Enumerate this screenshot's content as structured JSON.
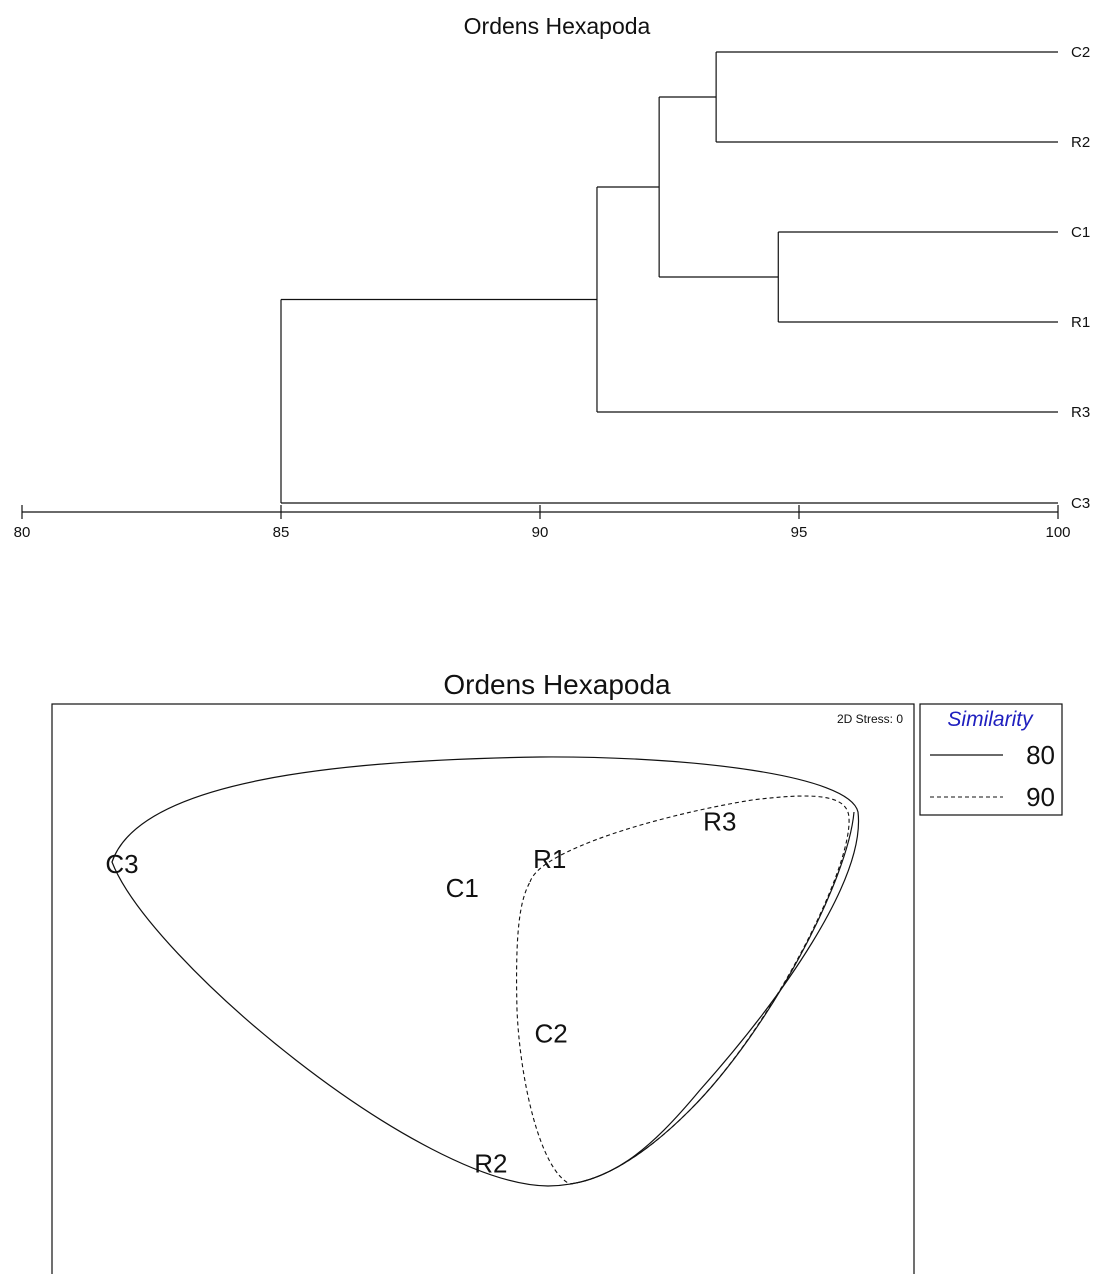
{
  "chart_data": [
    {
      "type": "dendrogram",
      "title": "Ordens Hexapoda",
      "axis": {
        "min": 80,
        "max": 100,
        "ticks": [
          "80",
          "85",
          "90",
          "95",
          "100"
        ]
      },
      "leaves": [
        "C2",
        "R2",
        "C1",
        "R1",
        "R3",
        "C3"
      ],
      "merges": [
        {
          "id": "m1",
          "a": "C2",
          "b": "R2",
          "similarity": 93.4
        },
        {
          "id": "m2",
          "a": "C1",
          "b": "R1",
          "similarity": 94.6
        },
        {
          "id": "m3",
          "a": "m1",
          "b": "m2",
          "similarity": 92.3
        },
        {
          "id": "m4",
          "a": "m3",
          "b": "R3",
          "similarity": 91.1
        },
        {
          "id": "m5",
          "a": "m4",
          "b": "C3",
          "similarity": 85.0
        }
      ]
    },
    {
      "type": "scatter",
      "title": "Ordens Hexapoda",
      "stress_label": "2D Stress: 0",
      "points": [
        {
          "label": "C3",
          "x": 0.0,
          "y": 0.0
        },
        {
          "label": "C1",
          "x": 0.486,
          "y": -0.034
        },
        {
          "label": "R1",
          "x": 0.611,
          "y": 0.007
        },
        {
          "label": "R3",
          "x": 0.854,
          "y": 0.061
        },
        {
          "label": "C2",
          "x": 0.613,
          "y": -0.242
        },
        {
          "label": "R2",
          "x": 0.527,
          "y": -0.428
        }
      ],
      "legend": {
        "title": "Similarity",
        "title_color": "#1f1fbf",
        "entries": [
          {
            "value": "80",
            "style": "solid"
          },
          {
            "value": "90",
            "style": "dashed"
          }
        ]
      }
    }
  ]
}
